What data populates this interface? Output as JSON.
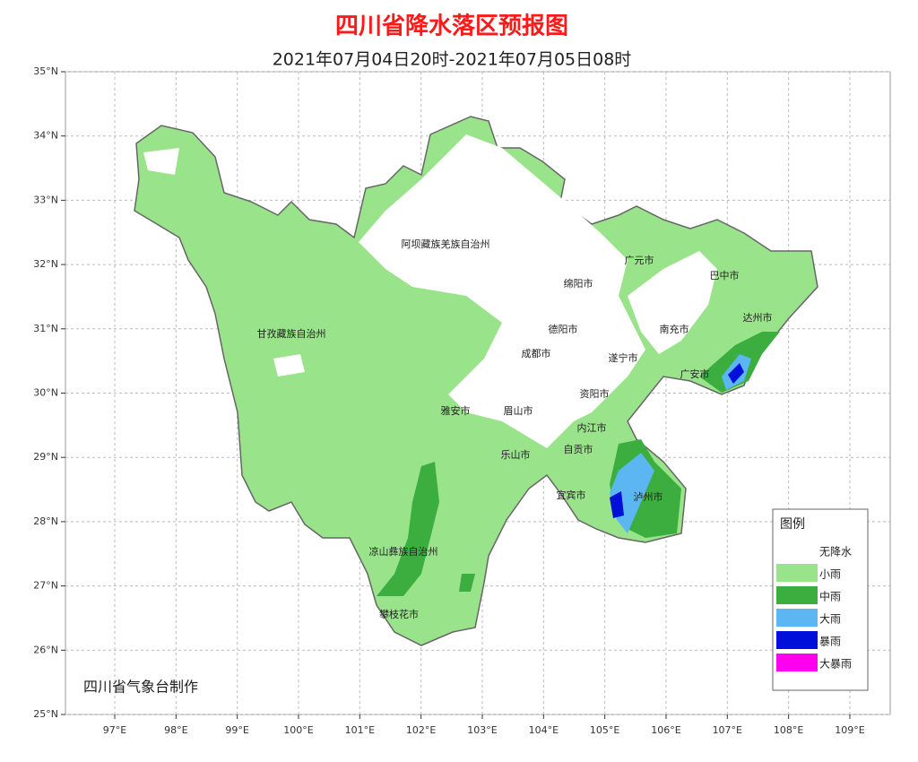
{
  "header": {
    "title": "四川省降水落区预报图",
    "subtitle": "2021年07月04日20时-2021年07月05日08时"
  },
  "map": {
    "lat_ticks": [
      {
        "value": 35,
        "label": "35°N"
      },
      {
        "value": 34,
        "label": "34°N"
      },
      {
        "value": 33,
        "label": "33°N"
      },
      {
        "value": 32,
        "label": "32°N"
      },
      {
        "value": 31,
        "label": "31°N"
      },
      {
        "value": 30,
        "label": "30°N"
      },
      {
        "value": 29,
        "label": "29°N"
      },
      {
        "value": 28,
        "label": "28°N"
      },
      {
        "value": 27,
        "label": "27°N"
      },
      {
        "value": 26,
        "label": "26°N"
      },
      {
        "value": 25,
        "label": "25°N"
      }
    ],
    "lon_ticks": [
      {
        "value": 97,
        "label": "97°E"
      },
      {
        "value": 98,
        "label": "98°E"
      },
      {
        "value": 99,
        "label": "99°E"
      },
      {
        "value": 100,
        "label": "100°E"
      },
      {
        "value": 101,
        "label": "101°E"
      },
      {
        "value": 102,
        "label": "102°E"
      },
      {
        "value": 103,
        "label": "103°E"
      },
      {
        "value": 104,
        "label": "104°E"
      },
      {
        "value": 105,
        "label": "105°E"
      },
      {
        "value": 106,
        "label": "106°E"
      },
      {
        "value": 107,
        "label": "107°E"
      },
      {
        "value": 108,
        "label": "108°E"
      },
      {
        "value": 109,
        "label": "109°E"
      }
    ],
    "cities": [
      "阿坝藏族羌族自治州",
      "甘孜藏族自治州",
      "广元市",
      "巴中市",
      "绵阳市",
      "达州市",
      "德阳市",
      "南充市",
      "成都市",
      "遂宁市",
      "广安市",
      "资阳市",
      "雅安市",
      "眉山市",
      "内江市",
      "自贡市",
      "乐山市",
      "宜宾市",
      "泸州市",
      "凉山彝族自治州",
      "攀枝花市"
    ],
    "legend": {
      "title": "图例",
      "items": [
        {
          "label": "无降水",
          "color": "#ffffff"
        },
        {
          "label": "小雨",
          "color": "#99e38a"
        },
        {
          "label": "中雨",
          "color": "#3cae3f"
        },
        {
          "label": "大雨",
          "color": "#5cb6f2"
        },
        {
          "label": "暴雨",
          "color": "#0010d8"
        },
        {
          "label": "大暴雨",
          "color": "#ff00f0"
        }
      ]
    },
    "credit": "四川省气象台制作"
  }
}
